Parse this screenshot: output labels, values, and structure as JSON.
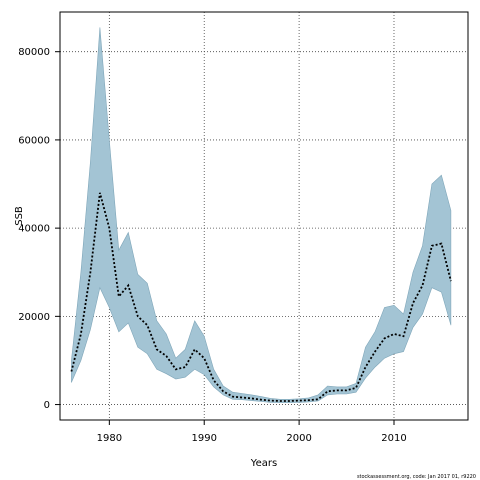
{
  "chart_data": {
    "type": "area",
    "xlabel": "Years",
    "ylabel": "SSB",
    "xlim": [
      1974.8,
      2017.8
    ],
    "ylim": [
      -3500,
      89000
    ],
    "x_ticks": [
      1980,
      1990,
      2000,
      2010
    ],
    "y_ticks": [
      0,
      20000,
      40000,
      60000,
      80000
    ],
    "grid": true,
    "grid_style": "dotted",
    "band_color": "#a3c4d4",
    "band_edge_color": "#7fa6b9",
    "line_color": "#000000",
    "line_style": "dashed",
    "x": [
      1976,
      1977,
      1978,
      1979,
      1980,
      1981,
      1982,
      1983,
      1984,
      1985,
      1986,
      1987,
      1988,
      1989,
      1990,
      1991,
      1992,
      1993,
      1994,
      1995,
      1996,
      1997,
      1998,
      1999,
      2000,
      2001,
      2002,
      2003,
      2004,
      2005,
      2006,
      2007,
      2008,
      2009,
      2010,
      2011,
      2012,
      2013,
      2014,
      2015,
      2016
    ],
    "series": [
      {
        "values": [
          7500,
          16000,
          30000,
          48000,
          40000,
          24500,
          27000,
          20000,
          18000,
          12500,
          11000,
          8000,
          8500,
          12500,
          10500,
          5500,
          3000,
          1800,
          1600,
          1400,
          1100,
          900,
          800,
          800,
          900,
          1000,
          1200,
          3000,
          3200,
          3200,
          3800,
          8500,
          12000,
          15000,
          16000,
          15500,
          23000,
          27000,
          36000,
          36500,
          28000
        ],
        "upper": [
          10000,
          30000,
          55000,
          85500,
          60000,
          35000,
          39000,
          29500,
          27500,
          19000,
          16000,
          10500,
          12500,
          19000,
          15500,
          8000,
          4200,
          2800,
          2500,
          2200,
          1800,
          1400,
          1200,
          1200,
          1300,
          1500,
          2200,
          4200,
          4000,
          4000,
          4800,
          13000,
          16500,
          22000,
          22500,
          20500,
          30000,
          36000,
          50000,
          52000,
          44000
        ],
        "lower": [
          5000,
          10000,
          17000,
          26500,
          22000,
          16500,
          18500,
          13000,
          11500,
          8000,
          7000,
          5800,
          6200,
          8000,
          6800,
          4000,
          2200,
          1200,
          1100,
          900,
          700,
          500,
          450,
          450,
          500,
          600,
          800,
          2200,
          2400,
          2400,
          2800,
          6000,
          8500,
          10500,
          11500,
          12000,
          17500,
          20500,
          26500,
          25500,
          18000
        ]
      }
    ]
  },
  "credit": "stockassessment.org, code: Jan 2017 01, r9220"
}
